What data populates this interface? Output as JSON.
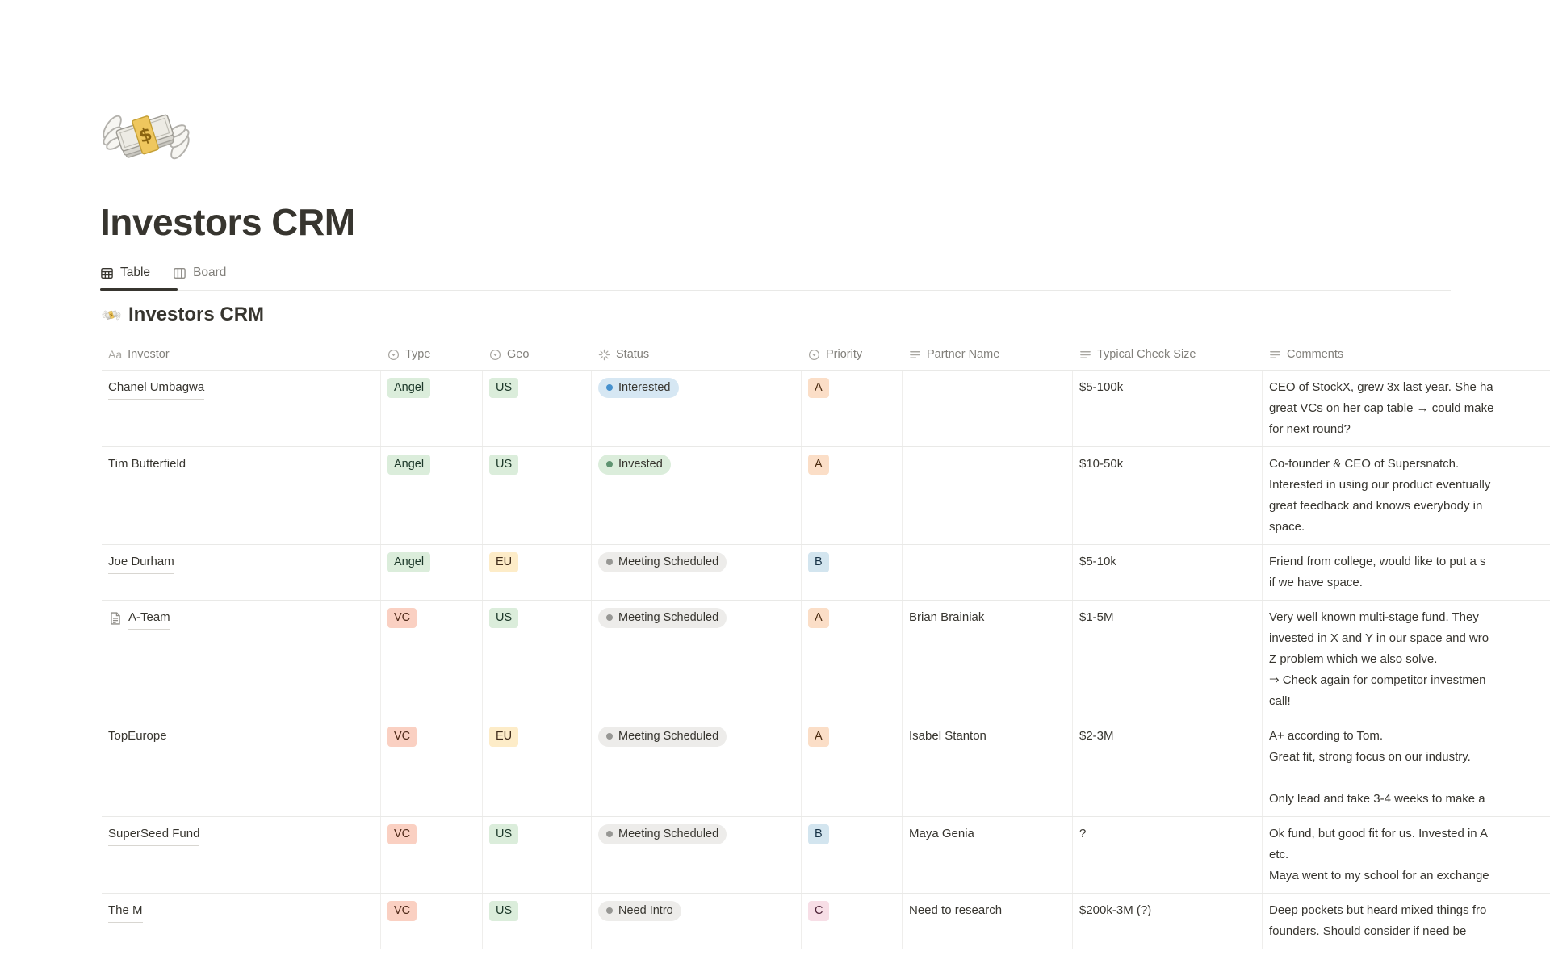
{
  "page": {
    "icon": "money-with-wings-emoji",
    "title": "Investors CRM",
    "tabs": [
      {
        "label": "Table",
        "icon": "table-view-icon",
        "active": true
      },
      {
        "label": "Board",
        "icon": "board-view-icon",
        "active": false
      }
    ],
    "section_icon": "money-with-wings-emoji",
    "section_title": "Investors CRM"
  },
  "table": {
    "columns": [
      {
        "label": "Investor",
        "icon": "text-aa"
      },
      {
        "label": "Type",
        "icon": "select"
      },
      {
        "label": "Geo",
        "icon": "select"
      },
      {
        "label": "Status",
        "icon": "status"
      },
      {
        "label": "Priority",
        "icon": "select"
      },
      {
        "label": "Partner Name",
        "icon": "text"
      },
      {
        "label": "Typical Check Size",
        "icon": "text"
      },
      {
        "label": "Comments",
        "icon": "text"
      }
    ],
    "rows": [
      {
        "investor": "Chanel Umbagwa",
        "has_page_icon": false,
        "type": {
          "label": "Angel",
          "color": "green"
        },
        "geo": {
          "label": "US",
          "color": "green"
        },
        "status": {
          "label": "Interested",
          "color": "blue"
        },
        "priority": {
          "label": "A",
          "color": "peach"
        },
        "partner": "",
        "check_size": "$5-100k",
        "comment_lines": [
          "CEO of StockX, grew 3x last year. She ha",
          "great VCs on her cap table → could make",
          "for next round?"
        ]
      },
      {
        "investor": "Tim Butterfield",
        "has_page_icon": false,
        "type": {
          "label": "Angel",
          "color": "green"
        },
        "geo": {
          "label": "US",
          "color": "green"
        },
        "status": {
          "label": "Invested",
          "color": "green"
        },
        "priority": {
          "label": "A",
          "color": "peach"
        },
        "partner": "",
        "check_size": "$10-50k",
        "comment_lines": [
          "Co-founder & CEO of Supersnatch.",
          "Interested in using our product eventually",
          "great feedback and knows everybody in",
          "space."
        ]
      },
      {
        "investor": "Joe Durham",
        "has_page_icon": false,
        "type": {
          "label": "Angel",
          "color": "green"
        },
        "geo": {
          "label": "EU",
          "color": "yellow"
        },
        "status": {
          "label": "Meeting Scheduled",
          "color": "gray"
        },
        "priority": {
          "label": "B",
          "color": "blue"
        },
        "partner": "",
        "check_size": "$5-10k",
        "comment_lines": [
          "Friend from college, would like to put a s",
          "if we have space."
        ]
      },
      {
        "investor": "A-Team",
        "has_page_icon": true,
        "type": {
          "label": "VC",
          "color": "salmon"
        },
        "geo": {
          "label": "US",
          "color": "green"
        },
        "status": {
          "label": "Meeting Scheduled",
          "color": "gray"
        },
        "priority": {
          "label": "A",
          "color": "peach"
        },
        "partner": "Brian Brainiak",
        "check_size": "$1-5M",
        "comment_lines": [
          "Very well known multi-stage fund. They",
          "invested in X and Y in our space and wro",
          "Z problem which we also solve.",
          "⇒ Check again for competitor investmen",
          "call!"
        ]
      },
      {
        "investor": "TopEurope",
        "has_page_icon": false,
        "type": {
          "label": "VC",
          "color": "salmon"
        },
        "geo": {
          "label": "EU",
          "color": "yellow"
        },
        "status": {
          "label": "Meeting Scheduled",
          "color": "gray"
        },
        "priority": {
          "label": "A",
          "color": "peach"
        },
        "partner": "Isabel Stanton",
        "check_size": "$2-3M",
        "comment_lines": [
          "A+ according to Tom.",
          "Great fit, strong focus on our industry.",
          "",
          "Only lead and take 3-4 weeks to make a"
        ]
      },
      {
        "investor": "SuperSeed Fund",
        "has_page_icon": false,
        "type": {
          "label": "VC",
          "color": "salmon"
        },
        "geo": {
          "label": "US",
          "color": "green"
        },
        "status": {
          "label": "Meeting Scheduled",
          "color": "gray"
        },
        "priority": {
          "label": "B",
          "color": "blue"
        },
        "partner": "Maya Genia",
        "check_size": "?",
        "comment_lines": [
          "Ok fund, but good fit for us. Invested in A",
          "etc.",
          "Maya went to my school for an exchange"
        ]
      },
      {
        "investor": "The M",
        "has_page_icon": false,
        "type": {
          "label": "VC",
          "color": "salmon"
        },
        "geo": {
          "label": "US",
          "color": "green"
        },
        "status": {
          "label": "Need Intro",
          "color": "gray"
        },
        "priority": {
          "label": "C",
          "color": "pink"
        },
        "partner": "Need to research",
        "check_size": "$200k-3M (?)",
        "comment_lines": [
          "Deep pockets but heard mixed things fro",
          "founders. Should consider if need be"
        ]
      }
    ]
  },
  "colors": {
    "text_primary": "#37352F",
    "text_secondary": "#82807B",
    "divider": "#E9E9E7",
    "tag": {
      "green": {
        "bg": "#DBEDDB",
        "text": "#1C3829"
      },
      "yellow": {
        "bg": "#FDECC8",
        "text": "#402C1B"
      },
      "salmon": {
        "bg": "#FAD0C2",
        "text": "#4E2817"
      },
      "peach": {
        "bg": "#FBDEC7",
        "text": "#49290E"
      },
      "blue": {
        "bg": "#D3E5EF",
        "text": "#183347"
      },
      "pink": {
        "bg": "#F7DEE6",
        "text": "#4C2337"
      }
    },
    "status": {
      "blue": {
        "bg": "#D6E7F3",
        "dot": "#4691CE"
      },
      "green": {
        "bg": "#DBEDDB",
        "dot": "#5F9471"
      },
      "gray": {
        "bg": "#EDECEA",
        "dot": "#979794"
      }
    }
  }
}
